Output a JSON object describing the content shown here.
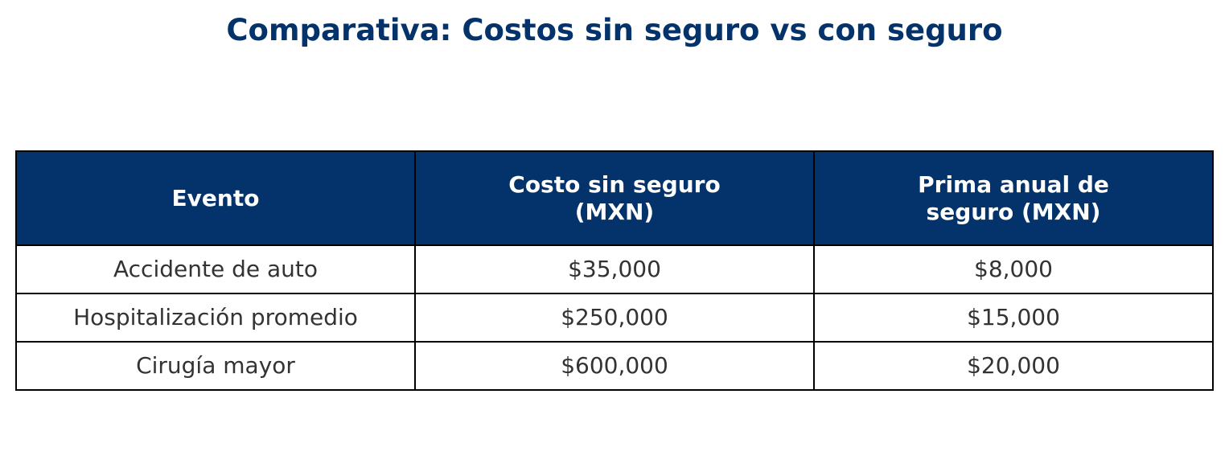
{
  "chart_data": {
    "type": "table",
    "title": "Comparativa: Costos sin seguro vs con seguro",
    "columns": [
      {
        "lines": [
          "Evento"
        ]
      },
      {
        "lines": [
          "Costo sin seguro",
          "(MXN)"
        ]
      },
      {
        "lines": [
          "Prima anual de",
          "seguro (MXN)"
        ]
      }
    ],
    "rows": [
      [
        "Accidente de auto",
        "$35,000",
        "$8,000"
      ],
      [
        "Hospitalización promedio",
        "$250,000",
        "$15,000"
      ],
      [
        "Cirugía mayor",
        "$600,000",
        "$20,000"
      ]
    ],
    "colors": {
      "header_bg": "#03336a",
      "header_text": "#ffffff",
      "title_text": "#03336a",
      "cell_text": "#333333",
      "border": "#000000"
    }
  }
}
